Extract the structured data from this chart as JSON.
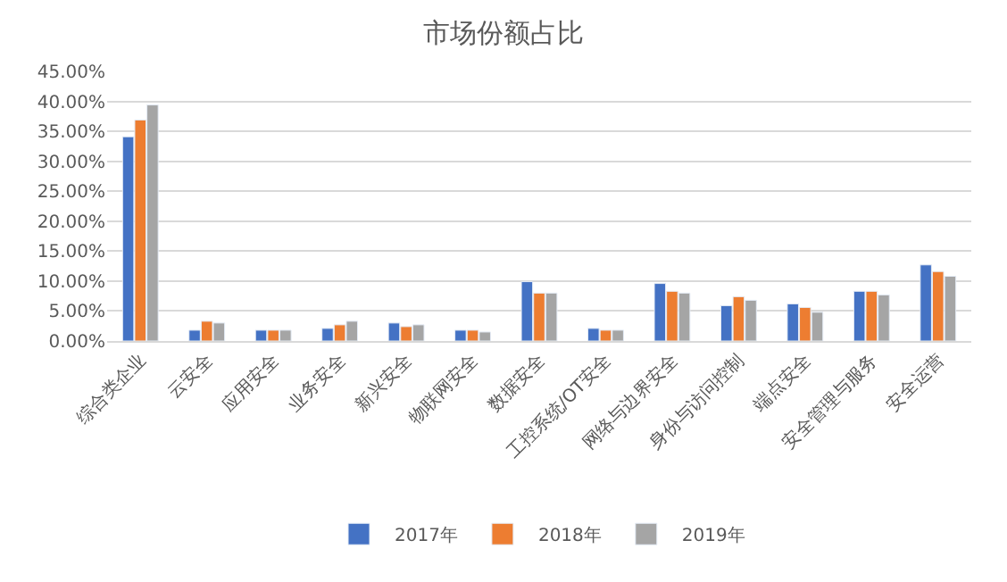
{
  "chart_data": {
    "type": "bar",
    "title": "市场份额占比",
    "categories": [
      "综合类企业",
      "云安全",
      "应用安全",
      "业务安全",
      "新兴安全",
      "物联网安全",
      "数据安全",
      "工控系统/OT安全",
      "网络与边界安全",
      "身份与访问控制",
      "端点安全",
      "安全管理与服务",
      "安全运营"
    ],
    "series": [
      {
        "name": "2017年",
        "color": "#4472c4",
        "values": [
          34.1,
          1.8,
          1.8,
          2.1,
          3.0,
          1.8,
          9.9,
          2.1,
          9.6,
          5.9,
          6.2,
          8.3,
          12.7
        ]
      },
      {
        "name": "2018年",
        "color": "#ed7d31",
        "values": [
          36.9,
          3.3,
          1.8,
          2.7,
          2.4,
          1.8,
          8.0,
          1.8,
          8.3,
          7.4,
          5.6,
          8.3,
          11.6
        ]
      },
      {
        "name": "2019年",
        "color": "#a5a5a5",
        "values": [
          39.4,
          3.0,
          1.8,
          3.3,
          2.7,
          1.5,
          8.0,
          1.8,
          8.0,
          6.8,
          4.8,
          7.7,
          10.8
        ]
      }
    ],
    "ylim": [
      0,
      45
    ],
    "yticks": [
      {
        "value": 0,
        "label": "0.00%"
      },
      {
        "value": 5,
        "label": "5.00%"
      },
      {
        "value": 10,
        "label": "10.00%"
      },
      {
        "value": 15,
        "label": "15.00%"
      },
      {
        "value": 20,
        "label": "20.00%"
      },
      {
        "value": 25,
        "label": "25.00%"
      },
      {
        "value": 30,
        "label": "30.00%"
      },
      {
        "value": 35,
        "label": "35.00%"
      },
      {
        "value": 40,
        "label": "40.00%"
      },
      {
        "value": 45,
        "label": "45.00%"
      }
    ],
    "grid": "y",
    "legend": "bottom"
  }
}
